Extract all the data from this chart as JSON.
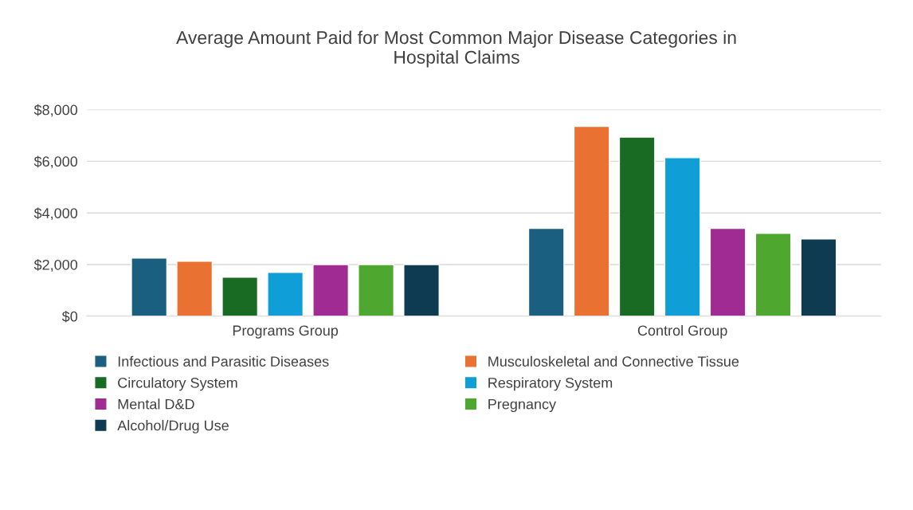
{
  "chart_data": {
    "type": "bar",
    "title": "Average Amount Paid for Most Common Major Disease Categories in\nHospital Claims",
    "categories": [
      "Programs Group",
      "Control Group"
    ],
    "series": [
      {
        "name": "Infectious and Parasitic Diseases",
        "color": "#1a5e80",
        "values": [
          2250,
          3400
        ]
      },
      {
        "name": "Musculoskeletal and Connective Tissue",
        "color": "#e97132",
        "values": [
          2130,
          7350
        ]
      },
      {
        "name": "Circulatory System",
        "color": "#196b24",
        "values": [
          1510,
          6940
        ]
      },
      {
        "name": "Respiratory System",
        "color": "#0f9ed5",
        "values": [
          1700,
          6140
        ]
      },
      {
        "name": "Mental D&D",
        "color": "#a02b93",
        "values": [
          2000,
          3400
        ]
      },
      {
        "name": "Pregnancy",
        "color": "#4ea72e",
        "values": [
          2000,
          3210
        ]
      },
      {
        "name": "Alcohol/Drug Use",
        "color": "#0e3a52",
        "values": [
          2000,
          2990
        ]
      }
    ],
    "ylim": [
      0,
      8000
    ],
    "yticks": [
      {
        "value": 0,
        "label": "$0"
      },
      {
        "value": 2000,
        "label": "$2,000"
      },
      {
        "value": 4000,
        "label": "$4,000"
      },
      {
        "value": 6000,
        "label": "$6,000"
      },
      {
        "value": 8000,
        "label": "$8,000"
      }
    ],
    "grid": "y",
    "legend": "bottom"
  }
}
